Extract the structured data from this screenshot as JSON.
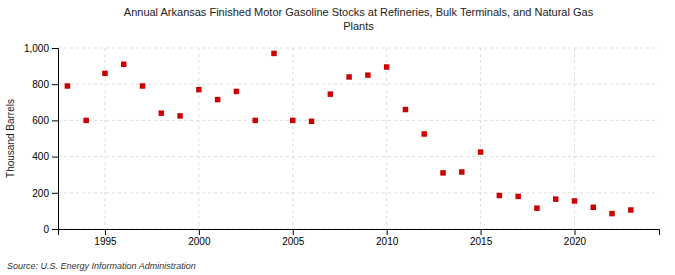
{
  "chart_data": {
    "type": "scatter",
    "title": "Annual Arkansas Finished Motor Gasoline Stocks at Refineries, Bulk Terminals, and Natural Gas\nPlants",
    "ylabel": "Thousand Barrels",
    "source": "Source: U.S. Energy Information Administration",
    "color": "#cc0000",
    "marker": "square",
    "grid": true,
    "x": [
      1993,
      1994,
      1995,
      1996,
      1997,
      1998,
      1999,
      2000,
      2001,
      2002,
      2003,
      2004,
      2005,
      2006,
      2007,
      2008,
      2009,
      2010,
      2011,
      2012,
      2013,
      2014,
      2015,
      2016,
      2017,
      2018,
      2019,
      2020,
      2021,
      2022,
      2023
    ],
    "values": [
      790,
      600,
      860,
      910,
      790,
      640,
      625,
      770,
      715,
      760,
      600,
      970,
      600,
      595,
      745,
      840,
      850,
      895,
      660,
      525,
      310,
      315,
      425,
      185,
      180,
      115,
      165,
      155,
      120,
      85,
      105
    ],
    "xlim": [
      1992.5,
      2024.5
    ],
    "xticks": [
      1995,
      2000,
      2005,
      2010,
      2015,
      2020
    ],
    "ylim": [
      0,
      1000
    ],
    "yticks": [
      0,
      200,
      400,
      600,
      800,
      {
        "value": 1000,
        "label": "1,000"
      }
    ]
  }
}
